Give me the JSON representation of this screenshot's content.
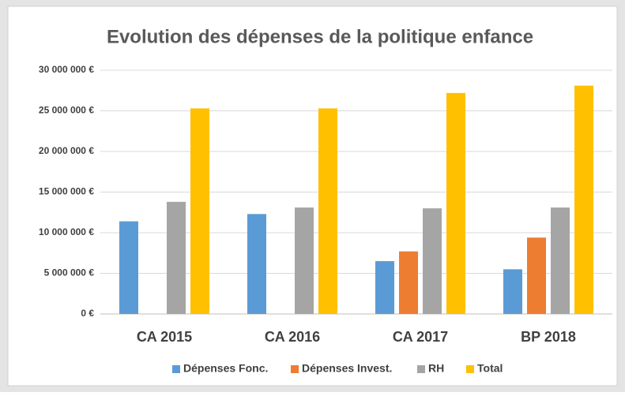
{
  "chart_data": {
    "type": "bar",
    "title": "Evolution des dépenses de la politique enfance",
    "categories": [
      "CA 2015",
      "CA 2016",
      "CA 2017",
      "BP 2018"
    ],
    "series": [
      {
        "name": "Dépenses Fonc.",
        "color": "#5b9bd5",
        "values": [
          11400000,
          12300000,
          6500000,
          5500000
        ]
      },
      {
        "name": "Dépenses Invest.",
        "color": "#ed7d31",
        "values": [
          null,
          null,
          7700000,
          9400000
        ]
      },
      {
        "name": "RH",
        "color": "#a5a5a5",
        "values": [
          13800000,
          13100000,
          13000000,
          13100000
        ]
      },
      {
        "name": "Total",
        "color": "#ffc000",
        "values": [
          25300000,
          25300000,
          27200000,
          28100000
        ]
      }
    ],
    "ylim": [
      0,
      30000000
    ],
    "yticks": [
      {
        "value": 0,
        "label": "0 €"
      },
      {
        "value": 5000000,
        "label": "5 000 000 €"
      },
      {
        "value": 10000000,
        "label": "10 000 000 €"
      },
      {
        "value": 15000000,
        "label": "15 000 000 €"
      },
      {
        "value": 20000000,
        "label": "20 000 000 €"
      },
      {
        "value": 25000000,
        "label": "25 000 000 €"
      },
      {
        "value": 30000000,
        "label": "30 000 000 €"
      }
    ],
    "grid": true,
    "legend": "bottom"
  }
}
